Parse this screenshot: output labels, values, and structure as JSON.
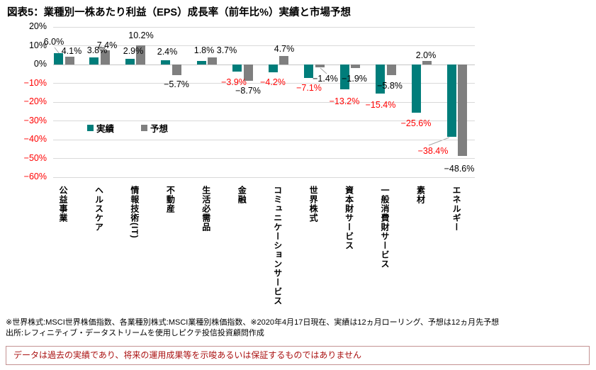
{
  "title": "図表5：業種別一株あたり利益（EPS）成長率（前年比%）実績と市場予想",
  "chart_data": {
    "type": "bar",
    "categories": [
      "公益事業",
      "ヘルスケア",
      "情報技術(IT)",
      "不動産",
      "生活必需品",
      "金融",
      "コミュニケーションサービス",
      "世界株式",
      "資本財サービス",
      "一般消費財サービス",
      "素材",
      "エネルギー"
    ],
    "series": [
      {
        "name": "実績",
        "color": "#007d7a",
        "values": [
          6.0,
          3.8,
          2.9,
          2.4,
          1.8,
          -3.9,
          -4.2,
          -7.1,
          -13.2,
          -15.4,
          -25.6,
          -38.4
        ]
      },
      {
        "name": "予想",
        "color": "#7f7f7f",
        "values": [
          4.1,
          7.4,
          10.2,
          -5.7,
          3.7,
          -8.7,
          4.7,
          -1.4,
          -1.9,
          -5.8,
          2.0,
          -48.6
        ]
      }
    ],
    "xlabel": "",
    "ylabel": "",
    "ylim": [
      -60,
      20
    ],
    "ytick_step": 10,
    "yticks": [
      "20%",
      "10%",
      "0%",
      "-10%",
      "-20%",
      "-30%",
      "-40%",
      "-50%",
      "-60%"
    ],
    "grid": true,
    "legend_position": "inside-top-left",
    "colors": {
      "actual_bar": "#007d7a",
      "forecast_bar": "#7f7f7f",
      "negative_text": "#ff0000",
      "positive_text": "#000000",
      "gridline": "#d9d9d9",
      "leader_line": "#a6a6a6"
    }
  },
  "legend": {
    "actual": "実績",
    "forecast": "予想"
  },
  "footnotes": [
    "※世界株式:MSCI世界株価指数、各業種別株式:MSCI業種別株価指数、※2020年4月17日現在、実績は12ヵ月ローリング、予想は12ヵ月先予想",
    "出所:レフィニティブ・データストリームを使用しピクテ投信投資顧問作成"
  ],
  "disclaimer": "データは過去の実績であり、将来の運用成果等を示唆あるいは保証するものではありません"
}
